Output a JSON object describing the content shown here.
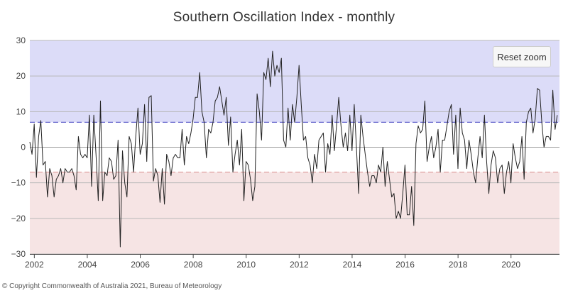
{
  "chart_data": {
    "type": "line",
    "title": "Southern Oscillation Index - monthly",
    "xlabel": "",
    "ylabel": "",
    "xlim": [
      2001.83,
      2021.83
    ],
    "ylim": [
      -30,
      30
    ],
    "yticks": [
      30,
      20,
      10,
      0,
      -10,
      -20,
      -30
    ],
    "ytick_labels": [
      "30",
      "20",
      "10",
      "0",
      "−10",
      "−20",
      "−30"
    ],
    "xticks": [
      2002,
      2004,
      2006,
      2008,
      2010,
      2012,
      2014,
      2016,
      2018,
      2020
    ],
    "xtick_labels": [
      "2002",
      "2004",
      "2006",
      "2008",
      "2010",
      "2012",
      "2014",
      "2016",
      "2018",
      "2020"
    ],
    "grid": true,
    "bands": [
      {
        "from": 7,
        "to": 30,
        "color": "#dcdcf8"
      },
      {
        "from": -30,
        "to": -7,
        "color": "#f6e4e4"
      }
    ],
    "threshold_lines": [
      {
        "value": 7,
        "color": "#6666cc",
        "style": "dashed"
      },
      {
        "value": -7,
        "color": "#e0a0a0",
        "style": "dashed"
      }
    ],
    "series": [
      {
        "name": "SOI",
        "color": "#222222",
        "start": 2001.83,
        "step": 0.08333,
        "values": [
          1.5,
          -2,
          6.5,
          -8.5,
          3,
          7.5,
          -5,
          -4,
          -14,
          -6,
          -8,
          -14,
          -9,
          -8,
          -6,
          -10,
          -6,
          -7,
          -7,
          -6,
          -8,
          -12,
          3,
          -2,
          -3,
          -2,
          -3,
          9,
          -11,
          9,
          -2,
          -15,
          13,
          -15,
          -7,
          -8,
          -3,
          -4,
          -9,
          -8,
          2,
          -28,
          -1,
          -10,
          -14,
          3,
          1,
          -7,
          3,
          11,
          -2,
          1,
          12,
          -4,
          14,
          14.5,
          -9.5,
          -6,
          -8,
          -15.5,
          -6,
          -16,
          -2,
          -4,
          -8,
          -3,
          -2,
          -3,
          -3,
          5,
          -5,
          3,
          1,
          4,
          8,
          14,
          14,
          21,
          10,
          7,
          -3,
          5,
          4,
          7,
          13,
          14,
          17,
          13,
          9,
          14,
          0.5,
          8.5,
          -7,
          -2,
          2,
          -5,
          5,
          -15,
          -4,
          -5,
          -9,
          -15,
          -11,
          15,
          10,
          2,
          21,
          19,
          25,
          17,
          27,
          20,
          23,
          21,
          25,
          2,
          0,
          11,
          2,
          12,
          7,
          14,
          23,
          12,
          2,
          3,
          -3,
          -5,
          -10,
          -2,
          -6,
          2,
          3,
          4,
          -7,
          1,
          -2,
          9,
          -1,
          6,
          14,
          6,
          0,
          4,
          -1,
          9,
          -1,
          12,
          0,
          -13,
          9,
          3,
          -2,
          -7,
          -11,
          -8,
          -8,
          -10,
          -5,
          -7,
          0,
          -11,
          -4,
          -9,
          -14,
          -13,
          -20,
          -18,
          -20,
          -13,
          -5,
          -19,
          -19,
          -11,
          -22,
          1,
          6,
          4,
          5,
          13,
          -4,
          0,
          3,
          -3,
          0,
          5,
          -7,
          2,
          2,
          6,
          10,
          12,
          -2,
          9,
          -6,
          11,
          4,
          2,
          -6,
          2,
          -2,
          -7,
          -10,
          -3,
          3,
          -3,
          9,
          -4,
          -13,
          -5,
          -1,
          -3,
          -10,
          -6,
          -5,
          -13,
          -7,
          -4,
          -10,
          1,
          -3,
          -6,
          -4,
          3,
          -9,
          7,
          10,
          11,
          4,
          8,
          16.5,
          16,
          7,
          0,
          3,
          3,
          2,
          16,
          5,
          9
        ]
      }
    ],
    "annotations": {
      "reset_zoom_label": "Reset zoom",
      "copyright": "© Copyright Commonwealth of Australia 2021, Bureau of Meteorology"
    }
  }
}
